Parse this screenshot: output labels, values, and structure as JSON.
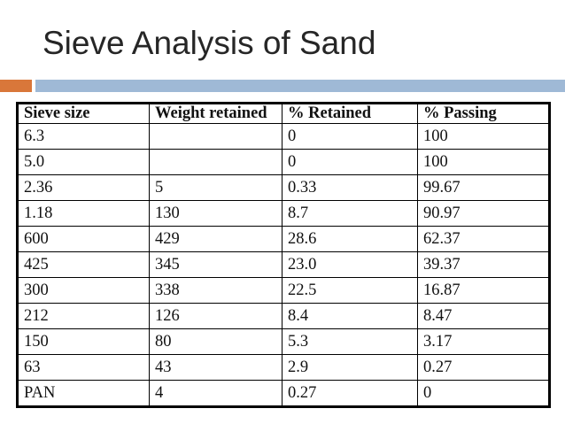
{
  "slide": {
    "title": "Sieve Analysis of Sand"
  },
  "colors": {
    "accent_orange": "#d9773a",
    "accent_blue": "#9fb9d6"
  },
  "table": {
    "headers": [
      "Sieve size",
      "Weight retained",
      "% Retained",
      "% Passing"
    ],
    "rows": [
      [
        "6.3",
        "",
        "0",
        "100"
      ],
      [
        "5.0",
        "",
        "0",
        "100"
      ],
      [
        "2.36",
        "5",
        "0.33",
        "99.67"
      ],
      [
        "1.18",
        "130",
        "8.7",
        "90.97"
      ],
      [
        "600",
        "429",
        "28.6",
        "62.37"
      ],
      [
        "425",
        "345",
        "23.0",
        "39.37"
      ],
      [
        "300",
        "338",
        "22.5",
        "16.87"
      ],
      [
        "212",
        "126",
        "8.4",
        "8.47"
      ],
      [
        "150",
        "80",
        "5.3",
        "3.17"
      ],
      [
        "63",
        "43",
        "2.9",
        "0.27"
      ],
      [
        "PAN",
        "4",
        "0.27",
        "0"
      ]
    ]
  }
}
